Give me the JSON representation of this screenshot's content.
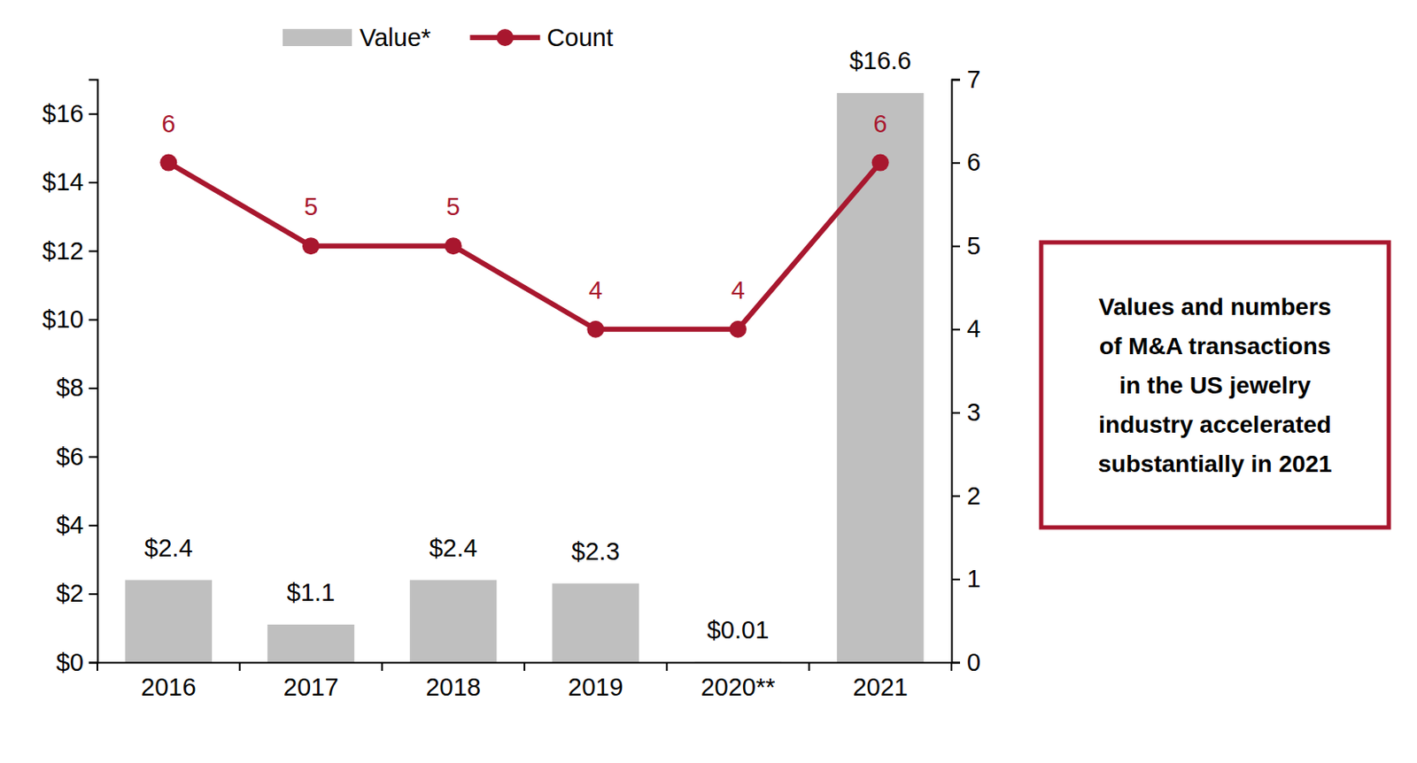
{
  "chart_data": {
    "type": "bar",
    "categories": [
      "2016",
      "2017",
      "2018",
      "2019",
      "2020**",
      "2021"
    ],
    "series": [
      {
        "name": "Value*",
        "type": "bar",
        "color": "#bfbfbf",
        "values": [
          2.4,
          1.1,
          2.4,
          2.3,
          0.01,
          16.6
        ],
        "value_labels": [
          "$2.4",
          "$1.1",
          "$2.4",
          "$2.3",
          "$0.01",
          "$16.6"
        ]
      },
      {
        "name": "Count",
        "type": "line",
        "axis": "y2",
        "color": "#a8172e",
        "marker": "circle",
        "values": [
          6,
          5,
          5,
          4,
          4,
          6
        ]
      }
    ],
    "ylim": [
      0,
      17
    ],
    "yticks": [
      {
        "value": 0,
        "label": "$0"
      },
      {
        "value": 2,
        "label": "$2"
      },
      {
        "value": 4,
        "label": "$4"
      },
      {
        "value": 6,
        "label": "$6"
      },
      {
        "value": 8,
        "label": "$8"
      },
      {
        "value": 10,
        "label": "$10"
      },
      {
        "value": 12,
        "label": "$12"
      },
      {
        "value": 14,
        "label": "$14"
      },
      {
        "value": 16,
        "label": "$16"
      }
    ],
    "y2lim": [
      0,
      7
    ],
    "y2ticks": [
      0,
      1,
      2,
      3,
      4,
      5,
      6,
      7
    ],
    "data_labels": true,
    "legend": "top",
    "grid": false,
    "annotation": "Values and numbers\nof M&A transactions\nin the US jewelry\nindustry accelerated\nsubstantially in 2021"
  }
}
